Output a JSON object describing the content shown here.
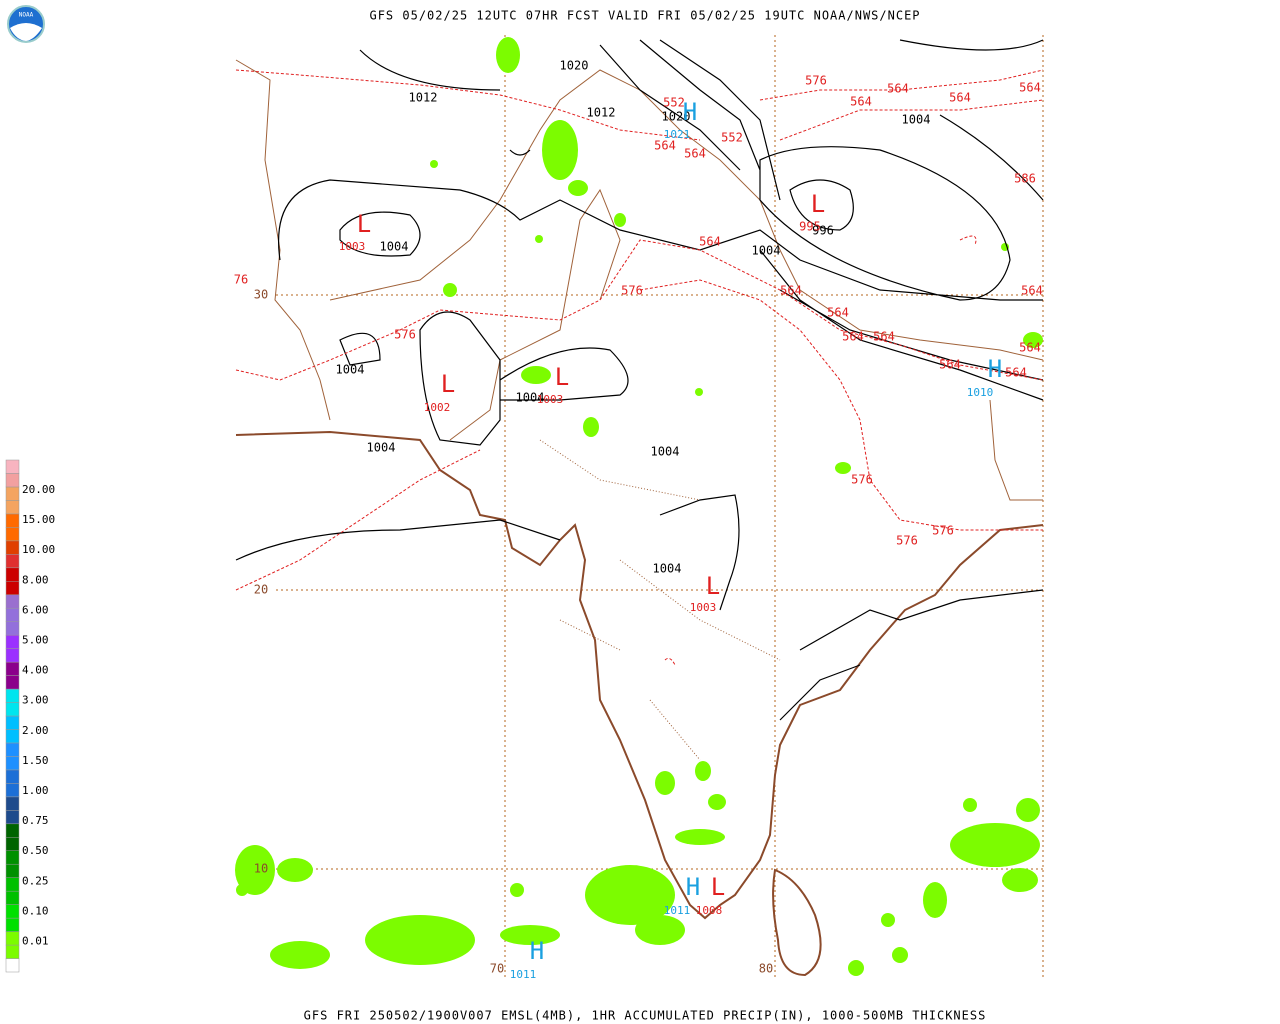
{
  "header": {
    "title": "GFS 05/02/25 12UTC 07HR FCST VALID FRI 05/02/25 19UTC NOAA/NWS/NCEP",
    "logo": "NOAA"
  },
  "footer": {
    "caption": "GFS FRI 250502/1900V007 EMSL(4MB), 1HR ACCUMULATED PRECIP(IN), 1000-500MB THICKNESS"
  },
  "legend": {
    "labels": [
      "20.00",
      "15.00",
      "10.00",
      "8.00",
      "6.00",
      "5.00",
      "4.00",
      "3.00",
      "2.00",
      "1.50",
      "1.00",
      "0.75",
      "0.50",
      "0.25",
      "0.10",
      "0.01"
    ]
  },
  "map": {
    "isobar_labels": [
      "1020",
      "1012",
      "1012",
      "1020",
      "1004",
      "1004",
      "996",
      "1004",
      "1004",
      "1004",
      "1004",
      "1004",
      "1004"
    ],
    "thickness_labels": [
      "576",
      "564",
      "564",
      "564",
      "564",
      "552",
      "564",
      "564",
      "552",
      "586",
      "995",
      "564",
      "576",
      "564",
      "564",
      "576",
      "564",
      "564",
      "564",
      "564",
      "564",
      "564",
      "576",
      "576",
      "576",
      "76"
    ],
    "lows": [
      {
        "symbol": "L",
        "pressure": "1003"
      },
      {
        "symbol": "L",
        "pressure": "1002"
      },
      {
        "symbol": "L",
        "pressure": "1003"
      },
      {
        "symbol": "L",
        "pressure": "1003"
      },
      {
        "symbol": "L",
        "pressure": "1008"
      },
      {
        "symbol": "L"
      }
    ],
    "highs": [
      {
        "symbol": "H",
        "pressure": "1021"
      },
      {
        "symbol": "H",
        "pressure": "1010"
      },
      {
        "symbol": "H",
        "pressure": "1011"
      },
      {
        "symbol": "H",
        "pressure": "1011"
      }
    ],
    "latitude_labels": [
      "30",
      "20",
      "10"
    ],
    "longitude_labels": [
      "70",
      "80"
    ]
  }
}
